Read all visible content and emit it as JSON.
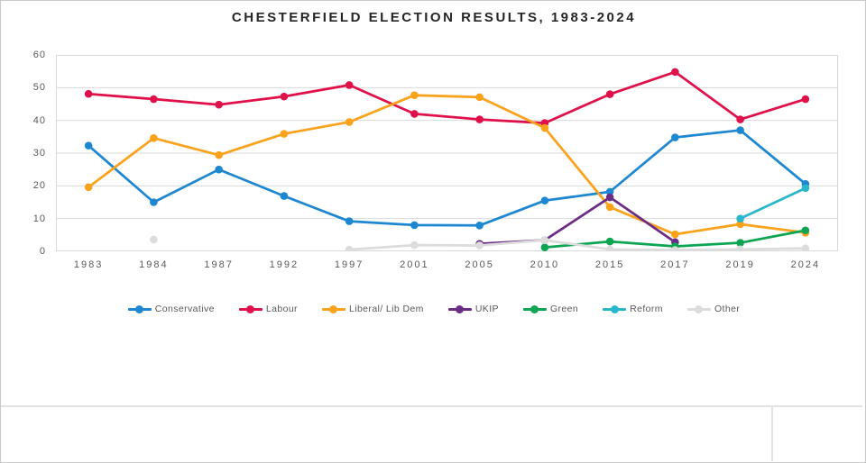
{
  "page": {
    "background_color": "#ffffff",
    "outer_border_color": "#c9c9c9",
    "object_boundary_color": "#e2e2e2"
  },
  "chart_data": {
    "type": "line",
    "title": "CHESTERFIELD ELECTION RESULTS, 1983-2024",
    "title_color": "#262626",
    "xlabel": "",
    "ylabel": "",
    "ylim": [
      0,
      60
    ],
    "yticks": [
      0,
      10,
      20,
      30,
      40,
      50,
      60
    ],
    "grid": "horizontal",
    "gridline_color": "#d9d9d9",
    "axis_text_color": "#595959",
    "legend_position": "bottom",
    "categories": [
      "1983",
      "1984",
      "1987",
      "1992",
      "1997",
      "2001",
      "2005",
      "2010",
      "2015",
      "2017",
      "2019",
      "2024"
    ],
    "series": [
      {
        "name": "Conservative",
        "color": "#1E87D2",
        "values": [
          32.3,
          15.0,
          25.0,
          16.9,
          9.2,
          8.0,
          7.9,
          15.5,
          18.2,
          34.8,
          37.0,
          20.6
        ]
      },
      {
        "name": "Labour",
        "color": "#E0114A",
        "values": [
          48.1,
          46.5,
          44.8,
          47.3,
          50.8,
          42.0,
          40.3,
          39.2,
          48.0,
          54.8,
          40.3,
          46.5
        ]
      },
      {
        "name": "Liberal/ Lib Dem",
        "color": "#FAA21B",
        "values": [
          19.6,
          34.6,
          29.4,
          35.9,
          39.5,
          47.7,
          47.1,
          37.7,
          13.5,
          5.2,
          8.3,
          5.7
        ]
      },
      {
        "name": "UKIP",
        "color": "#6B2C85",
        "values": [
          null,
          null,
          null,
          null,
          null,
          null,
          2.3,
          3.4,
          16.5,
          2.8,
          null,
          null
        ]
      },
      {
        "name": "Green",
        "color": "#0EA552",
        "values": [
          null,
          null,
          null,
          null,
          null,
          null,
          null,
          1.2,
          3.0,
          1.5,
          2.6,
          6.4
        ]
      },
      {
        "name": "Reform",
        "color": "#29B7CC",
        "values": [
          null,
          null,
          null,
          null,
          null,
          null,
          null,
          null,
          null,
          null,
          10.0,
          19.3
        ]
      },
      {
        "name": "Other",
        "color": "#DCDCDC",
        "values": [
          null,
          3.6,
          null,
          null,
          0.5,
          1.9,
          1.8,
          3.4,
          0.6,
          0.4,
          0.6,
          0.9
        ]
      }
    ]
  }
}
